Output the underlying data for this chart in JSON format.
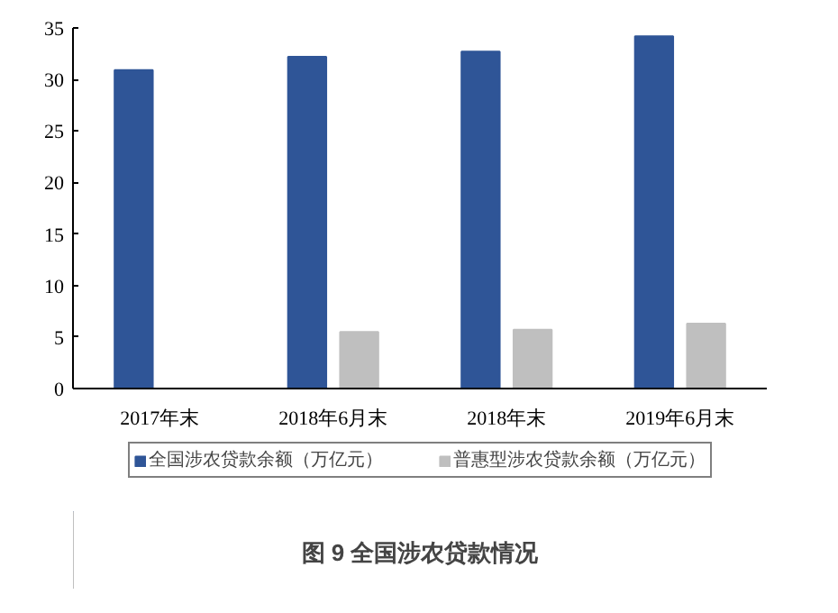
{
  "chart_data": {
    "type": "bar",
    "title": "图 9 全国涉农贷款情况",
    "categories": [
      "2017年末",
      "2018年6月末",
      "2018年末",
      "2019年6月末"
    ],
    "series": [
      {
        "name": "全国涉农贷款余额（万亿元）",
        "color": "#2f5597",
        "values": [
          30.9,
          32.2,
          32.7,
          34.2
        ]
      },
      {
        "name": "普惠型涉农贷款余额（万亿元）",
        "color": "#bfbfbf",
        "values": [
          null,
          5.5,
          5.7,
          6.3
        ]
      }
    ],
    "ylim": [
      0,
      35
    ],
    "yticks": [
      0,
      5,
      10,
      15,
      20,
      25,
      30,
      35
    ],
    "grid": false,
    "legend": "bottom"
  }
}
